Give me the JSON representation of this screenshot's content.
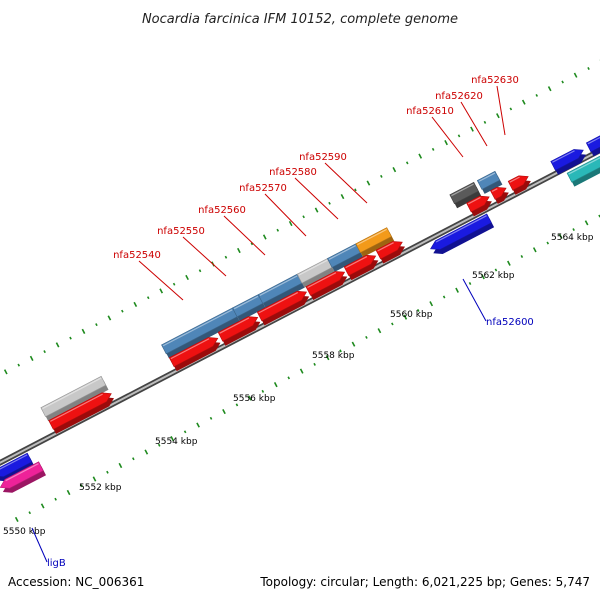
{
  "title": "Nocardia farcinica IFM 10152, complete genome",
  "accession": "Accession: NC_006361",
  "summary": "Topology: circular; Length: 6,021,225 bp; Genes: 5,747",
  "scale_labels": [
    "5550 kbp",
    "5552 kbp",
    "5554 kbp",
    "5556 kbp",
    "5558 kbp",
    "5560 kbp",
    "5562 kbp",
    "5564 kbp"
  ],
  "genes_upper": [
    "nfa52540",
    "nfa52550",
    "nfa52560",
    "nfa52570",
    "nfa52580",
    "nfa52590",
    "nfa52610",
    "nfa52620",
    "nfa52630"
  ],
  "genes_lower": [
    "nfa52600",
    "ligB"
  ],
  "colors": {
    "forward_cds": "#ee1111",
    "reverse_cds": "#1a1ae0",
    "upper_label": "#cc0000",
    "lower_label": "#0000bb",
    "tick": "#1e8a1e",
    "backbone": "#8c8c8c",
    "steelblue": "#4f86b8",
    "lightgray": "#c8c8c8",
    "orange": "#f39a1a",
    "darkgray": "#5a5a5a",
    "cyan": "#22d6d6",
    "teal": "#2ab8b8",
    "magenta": "#ee2299"
  }
}
